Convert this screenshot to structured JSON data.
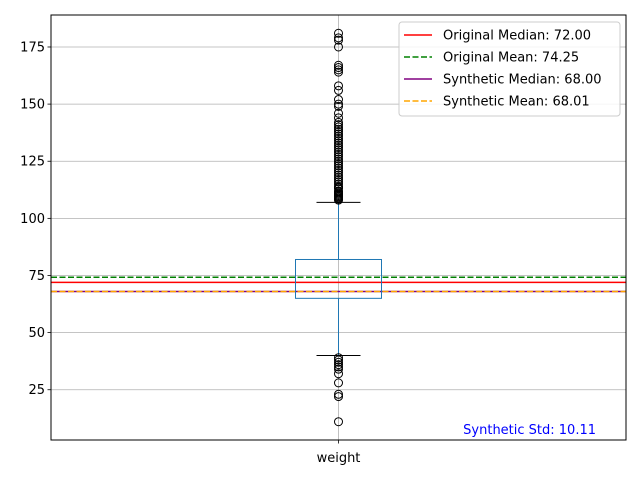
{
  "chart_data": {
    "type": "box",
    "title": "",
    "xlabel": "",
    "ylabel": "",
    "categories": [
      "weight"
    ],
    "ylim": [
      3,
      189
    ],
    "yticks": [
      25,
      50,
      75,
      100,
      125,
      150,
      175
    ],
    "grid": true,
    "box": {
      "category": "weight",
      "q1": 65,
      "median": 72,
      "q3": 82,
      "whisker_low": 40,
      "whisker_high": 107,
      "color": "#1f77b4",
      "outliers_high": [
        108,
        108.5,
        109,
        109.5,
        110,
        110.5,
        111,
        111.5,
        112,
        113,
        113.5,
        114,
        115,
        116,
        117,
        118,
        119,
        120,
        121,
        122,
        123,
        124,
        125,
        126,
        127,
        128,
        129,
        130,
        131,
        132,
        133,
        134,
        135,
        136,
        137,
        138,
        139,
        140,
        141,
        142,
        144,
        146,
        149,
        150,
        152,
        156,
        158,
        164,
        165,
        166,
        167,
        175,
        178,
        179,
        181
      ],
      "outliers_low": [
        39,
        38,
        37,
        36,
        35,
        34,
        32,
        28,
        23,
        22,
        11
      ]
    },
    "reference_lines": [
      {
        "name": "Original Median: 72.00",
        "value": 72.0,
        "color": "#ff0000",
        "style": "solid"
      },
      {
        "name": "Original Mean: 74.25",
        "value": 74.25,
        "color": "#008000",
        "style": "dashed"
      },
      {
        "name": "Synthetic Median: 68.00",
        "value": 68.0,
        "color": "#800080",
        "style": "solid"
      },
      {
        "name": "Synthetic Mean: 68.01",
        "value": 68.01,
        "color": "#ffa500",
        "style": "dashed"
      }
    ],
    "legend_placement": "top-right",
    "annotation": {
      "text": "Synthetic Std: 10.11",
      "color": "#0000ff",
      "placement": "bottom-right"
    }
  }
}
